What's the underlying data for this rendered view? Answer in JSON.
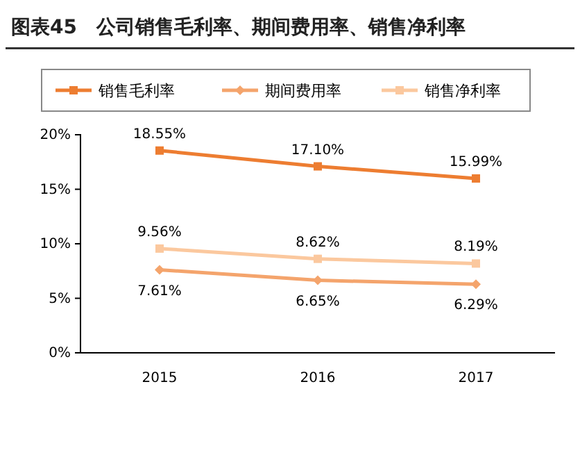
{
  "chart_data": {
    "type": "line",
    "title": "图表45　公司销售毛利率、期间费用率、销售净利率",
    "categories": [
      "2015",
      "2016",
      "2017"
    ],
    "series": [
      {
        "name": "销售毛利率",
        "color": "#ed7d31",
        "values": [
          18.55,
          17.1,
          15.99
        ],
        "marker": "square",
        "value_labels": [
          "18.55%",
          "17.10%",
          "15.99%"
        ]
      },
      {
        "name": "期间费用率",
        "color": "#f4a46c",
        "values": [
          7.61,
          6.65,
          6.29
        ],
        "marker": "diamond",
        "value_labels": [
          "7.61%",
          "6.65%",
          "6.29%"
        ]
      },
      {
        "name": "销售净利率",
        "color": "#fbc89e",
        "values": [
          9.56,
          8.62,
          8.19
        ],
        "marker": "square",
        "value_labels": [
          "9.56%",
          "8.62%",
          "8.19%"
        ]
      }
    ],
    "ylim": [
      0,
      20
    ],
    "yticks": [
      {
        "value": 0,
        "label": "0%"
      },
      {
        "value": 5,
        "label": "5%"
      },
      {
        "value": 10,
        "label": "10%"
      },
      {
        "value": 15,
        "label": "15%"
      },
      {
        "value": 20,
        "label": "20%"
      }
    ],
    "grid": false,
    "legend": "top"
  }
}
